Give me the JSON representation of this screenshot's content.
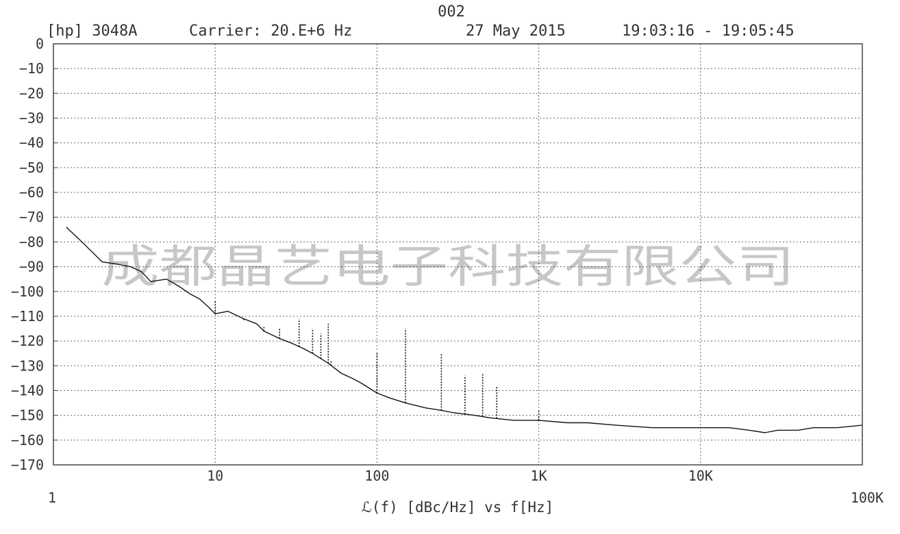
{
  "header": {
    "plot_number": "002",
    "instrument": "[hp] 3048A",
    "carrier": "Carrier: 20.E+6 Hz",
    "date": "27 May 2015",
    "time_range": "19:03:16 - 19:05:45"
  },
  "watermark": "成都晶艺电子科技有限公司",
  "chart_data": {
    "type": "line",
    "title": "",
    "xlabel": "ℒ(f) [dBc/Hz] vs f[Hz]",
    "ylabel": "",
    "x_scale": "log",
    "xlim": [
      1,
      100000
    ],
    "ylim": [
      -170,
      0
    ],
    "grid": true,
    "x_ticks": [
      {
        "value": 1,
        "label": "1"
      },
      {
        "value": 10,
        "label": "10"
      },
      {
        "value": 100,
        "label": "100"
      },
      {
        "value": 1000,
        "label": "1K"
      },
      {
        "value": 10000,
        "label": "10K"
      },
      {
        "value": 100000,
        "label": "100K"
      }
    ],
    "y_ticks": [
      0,
      -10,
      -20,
      -30,
      -40,
      -50,
      -60,
      -70,
      -80,
      -90,
      -100,
      -110,
      -120,
      -130,
      -140,
      -150,
      -160,
      -170
    ],
    "series": [
      {
        "x": [
          1.2,
          1.5,
          2.0,
          2.5,
          3.0,
          3.5,
          4.0,
          5.0,
          6.0,
          7.0,
          8.0,
          9.0,
          10,
          12,
          15,
          18,
          20,
          25,
          30,
          35,
          40,
          50,
          60,
          70,
          80,
          100,
          120,
          150,
          200,
          250,
          300,
          400,
          500,
          700,
          1000,
          1500,
          2000,
          3000,
          5000,
          7000,
          10000,
          15000,
          20000,
          25000,
          30000,
          40000,
          50000,
          70000,
          100000
        ],
        "y": [
          -74,
          -80,
          -88,
          -89,
          -90,
          -92,
          -96,
          -95,
          -98,
          -101,
          -103,
          -106,
          -109,
          -108,
          -111,
          -113,
          -116,
          -119,
          -121,
          -123,
          -125,
          -129,
          -133,
          -135,
          -137,
          -141,
          -143,
          -145,
          -147,
          -148,
          -149,
          -150,
          -151,
          -152,
          -152,
          -153,
          -153,
          -154,
          -155,
          -155,
          -155,
          -155,
          -156,
          -157,
          -156,
          -156,
          -155,
          -155,
          -154
        ]
      }
    ],
    "spurs": [
      {
        "x": 2.0,
        "y": -88
      },
      {
        "x": 10,
        "y": -104
      },
      {
        "x": 15,
        "y": -112
      },
      {
        "x": 20,
        "y": -114
      },
      {
        "x": 25,
        "y": -115
      },
      {
        "x": 33,
        "y": -111
      },
      {
        "x": 40,
        "y": -115
      },
      {
        "x": 45,
        "y": -117
      },
      {
        "x": 50,
        "y": -113
      },
      {
        "x": 52,
        "y": -128
      },
      {
        "x": 100,
        "y": -125
      },
      {
        "x": 150,
        "y": -115
      },
      {
        "x": 250,
        "y": -125
      },
      {
        "x": 350,
        "y": -134
      },
      {
        "x": 450,
        "y": -133
      },
      {
        "x": 550,
        "y": -138
      },
      {
        "x": 1000,
        "y": -148
      }
    ]
  }
}
